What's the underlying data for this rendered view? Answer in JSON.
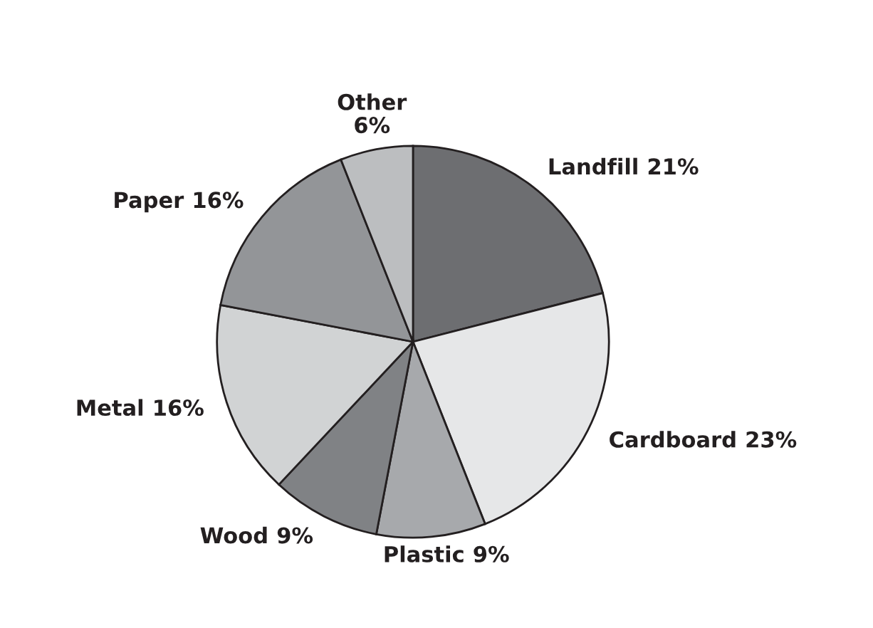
{
  "chart_data": {
    "type": "pie",
    "categories": [
      "Landfill",
      "Cardboard",
      "Plastic",
      "Wood",
      "Metal",
      "Paper",
      "Other"
    ],
    "values": [
      21,
      23,
      9,
      9,
      16,
      16,
      6
    ],
    "colors": [
      "#6d6e71",
      "#e6e7e8",
      "#a7a9ac",
      "#808285",
      "#d1d3d4",
      "#939598",
      "#bcbec0"
    ],
    "value_labels": [
      "21%",
      "23%",
      "9%",
      "9%",
      "16%",
      "16%",
      "6%"
    ]
  }
}
